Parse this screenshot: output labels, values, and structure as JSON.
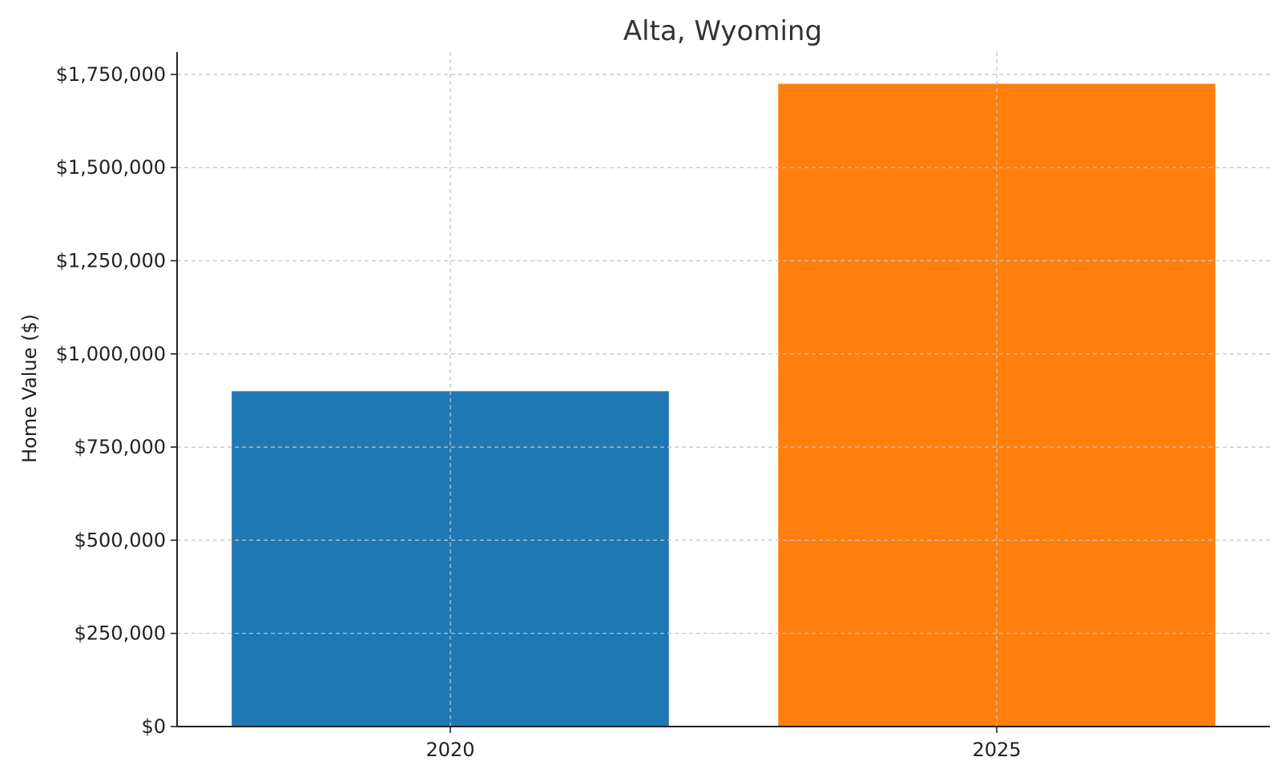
{
  "chart_data": {
    "type": "bar",
    "title": "Alta, Wyoming",
    "xlabel": "",
    "ylabel": "Home Value ($)",
    "categories": [
      "2020",
      "2025"
    ],
    "values": [
      900000,
      1725000
    ],
    "bar_colors": [
      "#1f77b4",
      "#ff7f0e"
    ],
    "ylim": [
      0,
      1810000
    ],
    "yticks": [
      0,
      250000,
      500000,
      750000,
      1000000,
      1250000,
      1500000,
      1750000
    ],
    "ytick_labels": [
      "$0",
      "$250,000",
      "$500,000",
      "$750,000",
      "$1,000,000",
      "$1,250,000",
      "$1,500,000",
      "$1,750,000"
    ],
    "grid": true,
    "legend": "none"
  }
}
